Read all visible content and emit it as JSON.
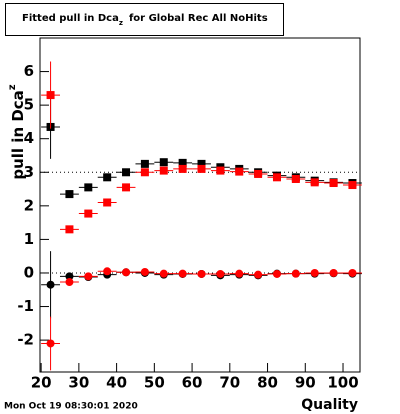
{
  "chart_data": {
    "type": "scatter",
    "title": [
      "Fitted pull in Dca",
      "z",
      "for Global Rec All NoHits"
    ],
    "ylabel": [
      "pull in Dca",
      "z"
    ],
    "xlabel": "Quality",
    "footer": "Mon Oct 19 08:30:01 2020",
    "x": [
      22.5,
      27.5,
      32.5,
      37.5,
      42.5,
      47.5,
      52.5,
      57.5,
      62.5,
      67.5,
      72.5,
      77.5,
      82.5,
      87.5,
      92.5,
      97.5,
      102.5
    ],
    "xerr": 2.5,
    "series": [
      {
        "color": "#000000",
        "marker": "square",
        "values": [
          4.35,
          2.35,
          2.55,
          2.85,
          3.0,
          3.25,
          3.3,
          3.28,
          3.25,
          3.15,
          3.1,
          3.0,
          2.9,
          2.85,
          2.75,
          2.7,
          2.68
        ],
        "errors": [
          0.95,
          0.05,
          0.05,
          0.05,
          0.05,
          0.05,
          0.05,
          0.05,
          0.05,
          0.05,
          0.05,
          0.05,
          0.05,
          0.05,
          0.05,
          0.05,
          0.05
        ]
      },
      {
        "color": "#ff0000",
        "marker": "square",
        "values": [
          5.3,
          1.3,
          1.77,
          2.1,
          2.55,
          3.0,
          3.05,
          3.1,
          3.1,
          3.05,
          3.02,
          2.95,
          2.85,
          2.8,
          2.7,
          2.68,
          2.62
        ],
        "errors": [
          1.0,
          0.05,
          0.05,
          0.05,
          0.05,
          0.05,
          0.05,
          0.05,
          0.05,
          0.05,
          0.05,
          0.05,
          0.05,
          0.05,
          0.05,
          0.05,
          0.05
        ]
      },
      {
        "color": "#000000",
        "marker": "circle",
        "values": [
          -0.35,
          -0.1,
          -0.12,
          -0.05,
          0.02,
          0.0,
          -0.05,
          -0.03,
          -0.03,
          -0.07,
          -0.05,
          -0.07,
          -0.02,
          -0.02,
          -0.02,
          -0.01,
          -0.02
        ],
        "errors": [
          1.0,
          0.05,
          0.05,
          0.05,
          0.05,
          0.05,
          0.05,
          0.05,
          0.05,
          0.05,
          0.05,
          0.05,
          0.05,
          0.05,
          0.05,
          0.05,
          0.05
        ]
      },
      {
        "color": "#ff0000",
        "marker": "circle",
        "values": [
          -2.1,
          -0.27,
          -0.1,
          0.05,
          0.02,
          0.03,
          -0.02,
          -0.02,
          -0.03,
          -0.03,
          -0.02,
          -0.05,
          -0.03,
          -0.02,
          0.0,
          0.0,
          0.0
        ],
        "errors": [
          0.8,
          0.05,
          0.05,
          0.05,
          0.05,
          0.05,
          0.05,
          0.05,
          0.05,
          0.05,
          0.05,
          0.05,
          0.05,
          0.05,
          0.05,
          0.05,
          0.05
        ]
      }
    ],
    "reference_lines": [
      0,
      3
    ],
    "xlim": [
      19.7,
      104.5
    ],
    "xticks": [
      20,
      30,
      40,
      50,
      60,
      70,
      80,
      90,
      100
    ],
    "ylim": [
      -2.95,
      7.0
    ],
    "yticks": [
      -2,
      -1,
      0,
      1,
      2,
      3,
      4,
      5,
      6
    ]
  }
}
